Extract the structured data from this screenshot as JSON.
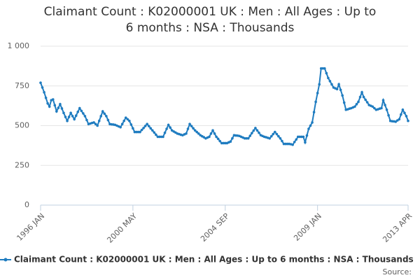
{
  "chart_data": {
    "type": "line",
    "title": "Claimant Count : K02000001 UK : Men : All Ages : Up to 6 months : NSA : Thousands",
    "source": "Source:",
    "categories": [
      "1996 JAN",
      null,
      null,
      null,
      null,
      null,
      null,
      null,
      null,
      null,
      null,
      null,
      null,
      null,
      null,
      null,
      null,
      null,
      null,
      null,
      null,
      null,
      null,
      null,
      null,
      null,
      null,
      null,
      null,
      null,
      null,
      null,
      null,
      null,
      null,
      null,
      null,
      null,
      null,
      null,
      null,
      null,
      null,
      null,
      null,
      null,
      null,
      null,
      null,
      null,
      null,
      null,
      "2000 MAY",
      null,
      null,
      null,
      null,
      null,
      null,
      null,
      null,
      null,
      null,
      null,
      null,
      null,
      null,
      null,
      null,
      null,
      null,
      null,
      null,
      null,
      null,
      null,
      null,
      null,
      null,
      null,
      null,
      null,
      null,
      null,
      null,
      null,
      null,
      null,
      null,
      null,
      null,
      null,
      null,
      null,
      null,
      null,
      null,
      null,
      null,
      null,
      null,
      null,
      null,
      null,
      "2004 SEP",
      null,
      null,
      null,
      null,
      null,
      null,
      null,
      null,
      null,
      null,
      null,
      null,
      null,
      null,
      null,
      null,
      null,
      null,
      null,
      null,
      null,
      null,
      null,
      null,
      null,
      null,
      null,
      null,
      null,
      null,
      null,
      null,
      null,
      null,
      null,
      null,
      null,
      null,
      null,
      null,
      null,
      null,
      null,
      null,
      null,
      null,
      null,
      null,
      null,
      null,
      null,
      "2009 JAN",
      null,
      null,
      null,
      null,
      null,
      null,
      null,
      null,
      null,
      null,
      null,
      null,
      null,
      null,
      null,
      null,
      null,
      null,
      null,
      null,
      null,
      null,
      null,
      null,
      null,
      null,
      null,
      null,
      null,
      null,
      null,
      null,
      null,
      null,
      null,
      null,
      null,
      null,
      null,
      null,
      null,
      null,
      null,
      null,
      null,
      null,
      null,
      null,
      null,
      null,
      "2013 APR"
    ],
    "series": [
      {
        "name": "Claimant Count : K02000001 UK : Men : All Ages : Up to 6 months : NSA : Thousands",
        "color": "#1f7cc0",
        "values": [
          770,
          740,
          710,
          675,
          640,
          620,
          660,
          665,
          628,
          590,
          612,
          635,
          608,
          580,
          555,
          530,
          555,
          580,
          560,
          540,
          563,
          587,
          610,
          593,
          577,
          560,
          535,
          510,
          513,
          517,
          520,
          510,
          500,
          530,
          560,
          590,
          575,
          560,
          535,
          510,
          508,
          507,
          505,
          500,
          495,
          490,
          510,
          530,
          550,
          540,
          530,
          507,
          483,
          460,
          460,
          460,
          460,
          473,
          485,
          498,
          510,
          497,
          483,
          470,
          457,
          443,
          430,
          430,
          430,
          430,
          455,
          480,
          505,
          488,
          470,
          463,
          457,
          450,
          447,
          443,
          440,
          445,
          450,
          480,
          510,
          497,
          483,
          470,
          460,
          450,
          440,
          433,
          427,
          420,
          425,
          430,
          450,
          470,
          450,
          430,
          417,
          403,
          390,
          390,
          390,
          390,
          395,
          400,
          420,
          440,
          438,
          437,
          435,
          430,
          425,
          420,
          420,
          420,
          436,
          453,
          469,
          485,
          470,
          455,
          440,
          435,
          430,
          427,
          423,
          420,
          433,
          447,
          460,
          447,
          433,
          420,
          403,
          385,
          385,
          385,
          385,
          383,
          380,
          397,
          413,
          430,
          430,
          430,
          430,
          395,
          438,
          480,
          500,
          520,
          585,
          650,
          705,
          760,
          860,
          860,
          860,
          830,
          800,
          780,
          760,
          740,
          735,
          730,
          760,
          725,
          690,
          645,
          600,
          603,
          607,
          610,
          615,
          620,
          635,
          650,
          680,
          710,
          680,
          663,
          647,
          630,
          625,
          620,
          610,
          600,
          603,
          607,
          610,
          660,
          630,
          600,
          565,
          530,
          528,
          527,
          525,
          533,
          540,
          570,
          600,
          580,
          560,
          530
        ]
      }
    ],
    "ylim": [
      0,
      1000
    ],
    "yticks": [
      0,
      250,
      500,
      750,
      {
        "value": 1000,
        "label": "1 000"
      }
    ],
    "grid": true
  }
}
